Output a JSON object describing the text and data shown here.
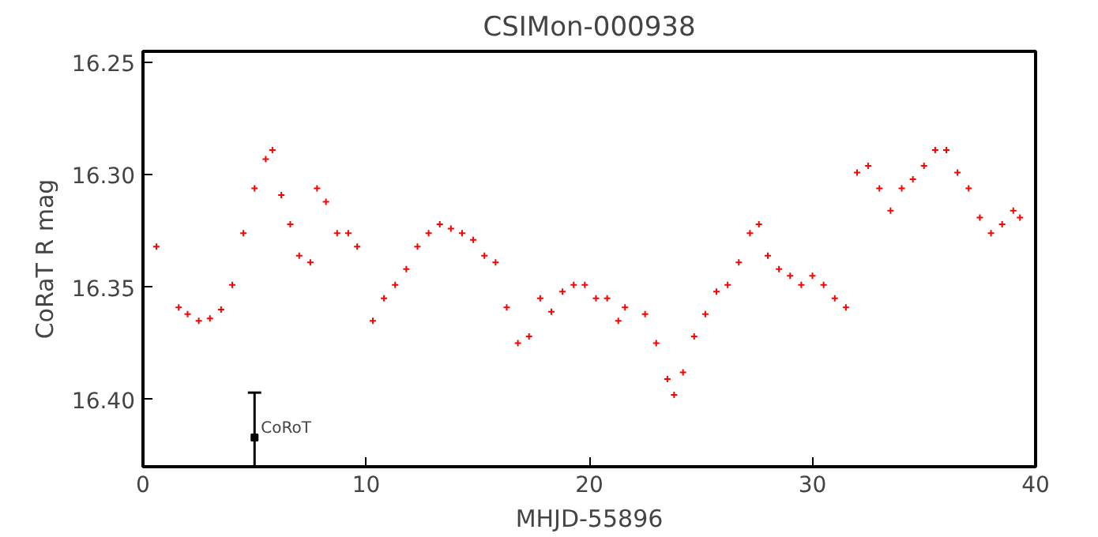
{
  "chart_data": {
    "type": "scatter",
    "title": "CSIMon-000938",
    "xlabel": "MHJD-55896",
    "ylabel": "CoRaT R mag",
    "xlim": [
      0,
      40
    ],
    "xticks": [
      0,
      10,
      20,
      30,
      40
    ],
    "ylim": [
      16.43,
      16.245
    ],
    "yticks": [
      {
        "value": 16.25,
        "label": "16.25"
      },
      {
        "value": 16.3,
        "label": "16.30"
      },
      {
        "value": 16.35,
        "label": "16.35"
      },
      {
        "value": 16.4,
        "label": "16.40"
      }
    ],
    "grid": false,
    "annotations": [
      {
        "text": "CoRoT",
        "x": 5,
        "y": 16.417
      }
    ],
    "series": [
      {
        "color": "#ff0000",
        "marker": "cross",
        "x": [
          0.6,
          1.6,
          2.0,
          2.5,
          3.0,
          3.5,
          4.0,
          4.5,
          5.0,
          5.5,
          5.8,
          6.2,
          6.6,
          7.0,
          7.5,
          7.8,
          8.2,
          8.7,
          9.2,
          9.6,
          10.3,
          10.8,
          11.3,
          11.8,
          12.3,
          12.8,
          13.3,
          13.8,
          14.3,
          14.8,
          15.3,
          15.8,
          16.3,
          16.8,
          17.3,
          17.8,
          18.3,
          18.8,
          19.3,
          19.8,
          20.3,
          20.8,
          21.3,
          21.6,
          22.5,
          23.0,
          23.5,
          23.8,
          24.2,
          24.7,
          25.2,
          25.7,
          26.2,
          26.7,
          27.2,
          27.6,
          28.0,
          28.5,
          29.0,
          29.5,
          30.0,
          30.5,
          31.0,
          31.5,
          32.0,
          32.5,
          33.0,
          33.5,
          34.0,
          34.5,
          35.0,
          35.5,
          36.0,
          36.5,
          37.0,
          37.5,
          38.0,
          38.5,
          39.0,
          39.3
        ],
        "values": [
          16.332,
          16.359,
          16.362,
          16.365,
          16.364,
          16.36,
          16.349,
          16.326,
          16.306,
          16.293,
          16.289,
          16.309,
          16.322,
          16.336,
          16.339,
          16.306,
          16.312,
          16.326,
          16.326,
          16.332,
          16.365,
          16.355,
          16.349,
          16.342,
          16.332,
          16.326,
          16.322,
          16.324,
          16.326,
          16.329,
          16.336,
          16.339,
          16.359,
          16.375,
          16.372,
          16.355,
          16.361,
          16.352,
          16.349,
          16.349,
          16.355,
          16.355,
          16.365,
          16.359,
          16.362,
          16.375,
          16.391,
          16.398,
          16.388,
          16.372,
          16.362,
          16.352,
          16.349,
          16.339,
          16.326,
          16.322,
          16.336,
          16.342,
          16.345,
          16.349,
          16.345,
          16.349,
          16.355,
          16.359,
          16.299,
          16.296,
          16.306,
          16.316,
          16.306,
          16.302,
          16.296,
          16.289,
          16.289,
          16.299,
          16.306,
          16.319,
          16.326,
          16.322,
          16.316,
          16.319
        ]
      },
      {
        "color": "#000000",
        "marker": "square",
        "x": [
          5
        ],
        "values": [
          16.417
        ],
        "errors": [
          [
            16.397,
            16.43
          ]
        ]
      }
    ]
  }
}
